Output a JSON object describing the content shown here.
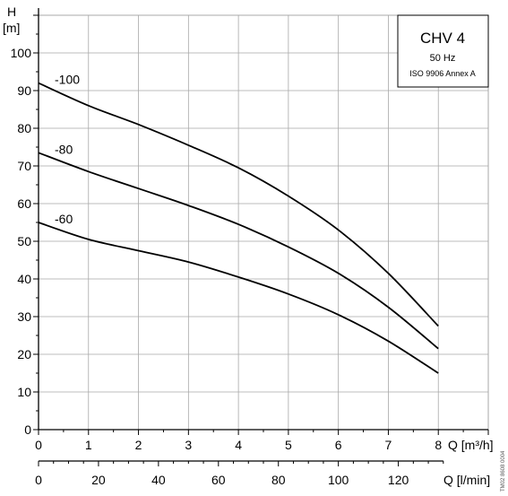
{
  "chart_data": {
    "type": "line",
    "y_axis": {
      "symbol": "H",
      "unit": "[m]",
      "ylim": [
        0,
        100
      ],
      "ticks": [
        0,
        10,
        20,
        30,
        40,
        50,
        60,
        70,
        80,
        90,
        100
      ]
    },
    "x_axis": {
      "label": "Q [m³/h]",
      "xlim": [
        0,
        8
      ],
      "ticks": [
        0,
        1,
        2,
        3,
        4,
        5,
        6,
        7,
        8
      ]
    },
    "x_axis_secondary": {
      "label": "Q [l/min]",
      "ticks": [
        0,
        20,
        40,
        60,
        80,
        100,
        120
      ]
    },
    "grid": true,
    "legend_box": {
      "title": "CHV 4",
      "line1": "50 Hz",
      "line2": "ISO 9906 Annex A",
      "placement": "top-right"
    },
    "series": [
      {
        "name": "-100",
        "x": [
          0,
          1,
          2,
          3,
          4,
          5,
          6,
          7,
          8
        ],
        "values": [
          92,
          86,
          81,
          75.5,
          69.5,
          62,
          53,
          41.5,
          27.5
        ]
      },
      {
        "name": "-80",
        "x": [
          0,
          1,
          2,
          3,
          4,
          5,
          6,
          7,
          8
        ],
        "values": [
          73.5,
          68.5,
          64,
          59.5,
          54.5,
          48.5,
          41.5,
          32.5,
          21.5
        ]
      },
      {
        "name": "-60",
        "x": [
          0,
          1,
          2,
          3,
          4,
          5,
          6,
          7,
          8
        ],
        "values": [
          55,
          50.5,
          47.5,
          44.5,
          40.5,
          36,
          30.5,
          23.5,
          15
        ]
      }
    ],
    "side_code": "TM02 8608 0004"
  },
  "colors": {
    "line": "#000000",
    "grid": "#a8a8a8",
    "background": "#ffffff"
  }
}
